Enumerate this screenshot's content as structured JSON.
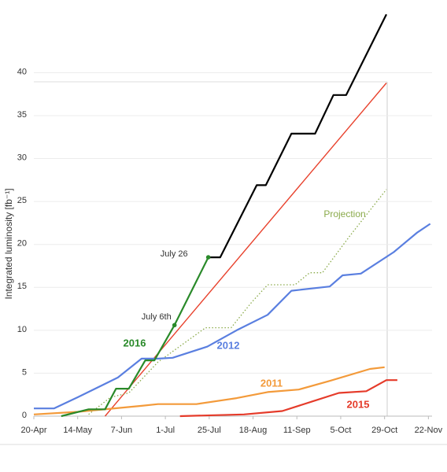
{
  "chart_data": {
    "type": "line",
    "y_label": "Integrated luminosity [fb⁻¹]",
    "xlim": [
      0,
      218
    ],
    "ylim": [
      0,
      47
    ],
    "grid": true,
    "xticks": [
      {
        "value": 0,
        "label": "20-Apr"
      },
      {
        "value": 24,
        "label": "14-May"
      },
      {
        "value": 48,
        "label": "7-Jun"
      },
      {
        "value": 72,
        "label": "1-Jul"
      },
      {
        "value": 96,
        "label": "25-Jul"
      },
      {
        "value": 120,
        "label": "18-Aug"
      },
      {
        "value": 144,
        "label": "11-Sep"
      },
      {
        "value": 168,
        "label": "5-Oct"
      },
      {
        "value": 192,
        "label": "29-Oct"
      },
      {
        "value": 216,
        "label": "22-Nov"
      }
    ],
    "yticks": [
      0,
      5,
      10,
      15,
      20,
      25,
      30,
      35,
      40
    ],
    "series": [
      {
        "color": "#000000",
        "x": [
          95.5,
          102,
          122,
          127,
          141,
          154,
          164,
          171,
          193
        ],
        "values": [
          18.5,
          18.5,
          26.9,
          26.9,
          32.9,
          32.9,
          37.4,
          37.4,
          46.8
        ]
      },
      {
        "color": "#e8412c",
        "x": [
          39,
          193
        ],
        "values": [
          0,
          38.8
        ]
      },
      {
        "name": "Projection",
        "color": "#8aaa4a",
        "style": "dotted",
        "x": [
          30,
          42,
          52,
          68,
          94,
          108,
          119,
          128,
          143,
          151,
          158,
          173,
          193
        ],
        "values": [
          0.2,
          2.2,
          2.7,
          6.3,
          10.3,
          10.3,
          13.2,
          15.3,
          15.3,
          16.7,
          16.7,
          21.0,
          26.4
        ]
      },
      {
        "name": "2012",
        "color": "#5a7fe0",
        "x": [
          0,
          11,
          24,
          46,
          59,
          68,
          76,
          95,
          111,
          128,
          141,
          162,
          169,
          179,
          197,
          210,
          217
        ],
        "values": [
          0.9,
          0.9,
          2.2,
          4.5,
          6.7,
          6.7,
          6.8,
          8.1,
          10,
          11.8,
          14.6,
          15.1,
          16.4,
          16.6,
          19.1,
          21.4,
          22.4
        ]
      },
      {
        "name": "2011",
        "color": "#f39a3a",
        "x": [
          0,
          24,
          59,
          68,
          89,
          111,
          128,
          145,
          162,
          184,
          192
        ],
        "values": [
          0.2,
          0.5,
          1.2,
          1.4,
          1.4,
          2.1,
          2.8,
          3.1,
          4.1,
          5.5,
          5.7
        ]
      },
      {
        "name": "2015",
        "color": "#e53b2a",
        "x": [
          80,
          115,
          136,
          167,
          182,
          193,
          199
        ],
        "values": [
          0,
          0.2,
          0.6,
          2.7,
          2.9,
          4.2,
          4.2
        ]
      },
      {
        "name": "2016",
        "color": "#2a8a2a",
        "x": [
          15,
          30,
          39,
          45,
          52,
          61,
          66,
          77,
          95.5
        ],
        "values": [
          0,
          0.8,
          0.8,
          3.2,
          3.2,
          6.5,
          6.5,
          10.6,
          18.5
        ]
      }
    ],
    "annotations": [
      {
        "text": "July 26",
        "series": 6,
        "point": 8
      },
      {
        "text": "July 6th",
        "series": 6,
        "point": 7
      }
    ]
  }
}
